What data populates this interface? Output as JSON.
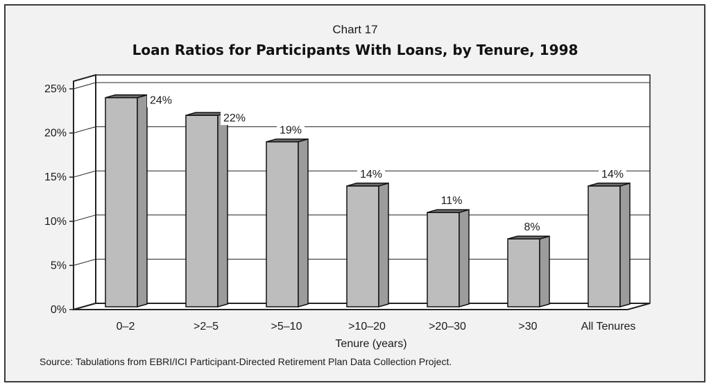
{
  "chart_data": {
    "type": "bar",
    "chart_number": "Chart 17",
    "title": "Loan Ratios for Participants With Loans, by Tenure, 1998",
    "xlabel": "Tenure (years)",
    "ylabel": "",
    "categories": [
      "0–2",
      ">2–5",
      ">5–10",
      ">10–20",
      ">20–30",
      ">30",
      "All Tenures"
    ],
    "values": [
      24,
      22,
      19,
      14,
      11,
      8,
      14
    ],
    "value_labels": [
      "24%",
      "22%",
      "19%",
      "14%",
      "11%",
      "8%",
      "14%"
    ],
    "ylim": [
      0,
      25
    ],
    "yticks": [
      0,
      5,
      10,
      15,
      20,
      25
    ],
    "ytick_labels": [
      "0%",
      "5%",
      "10%",
      "15%",
      "20%",
      "25%"
    ],
    "grid": true,
    "style": "3d",
    "source": "Source: Tabulations from EBRI/ICI Participant-Directed Retirement Plan Data Collection Project.",
    "colors": {
      "bar_front": "#bdbdbd",
      "bar_side": "#9c9c9c",
      "bar_top": "#6e6e6e",
      "wall": "#ffffff",
      "frame": "#f2f2f2"
    }
  }
}
